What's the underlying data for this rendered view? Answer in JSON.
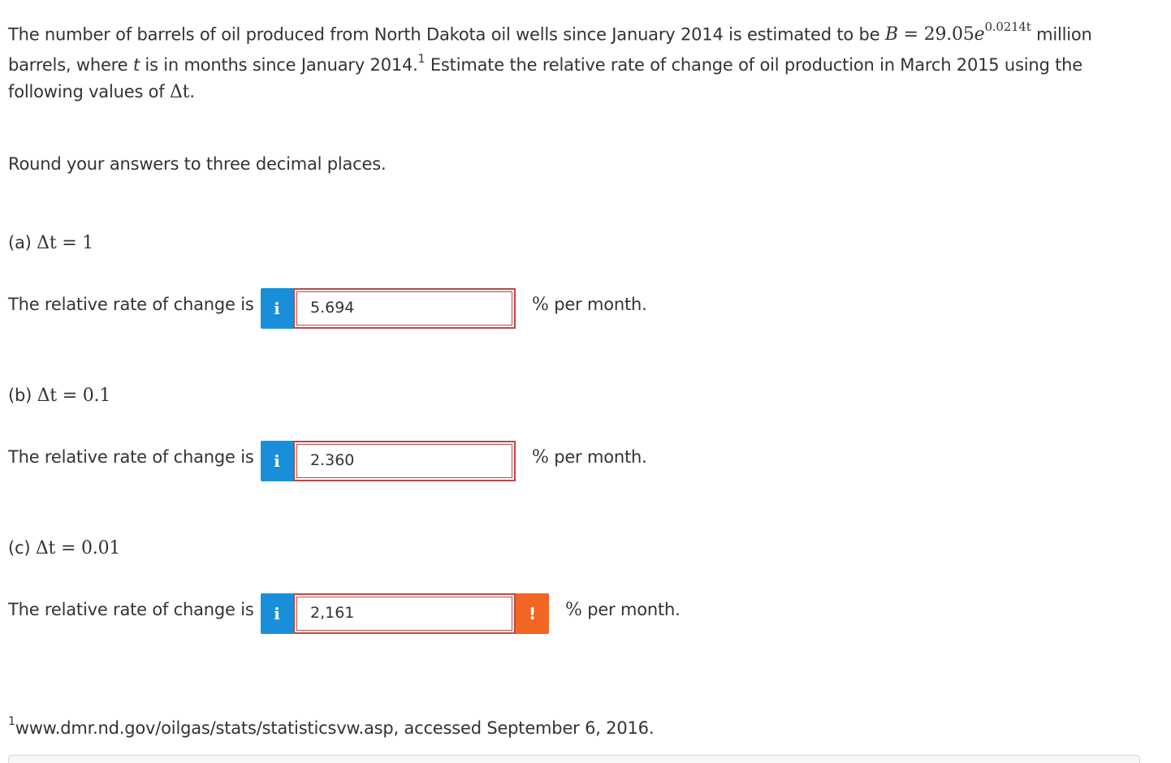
{
  "problem": {
    "intro": "The number of barrels of oil produced from North Dakota oil wells since January 2014 is estimated to be ",
    "formula_lhs": "B",
    "formula_eq": " = 29.05",
    "formula_base": "e",
    "formula_exponent": "0.0214t",
    "after_formula": " million barrels, where ",
    "var_t": "t",
    "after_t": " is in months since January 2014.",
    "footnote_ref": "1",
    "question": " Estimate the relative rate of change of oil production in March 2015 using the following values of ",
    "delta_t": "Δt",
    "period": "."
  },
  "instructions": "Round your answers to three decimal places.",
  "parts": [
    {
      "label": "(a) ",
      "delta": "Δt",
      "delta_value": " = 1",
      "prompt": "The relative rate of change is",
      "info_icon": "i",
      "answer": "5.694",
      "unit_symbol": "%",
      "unit_text": " per month."
    },
    {
      "label": "(b) ",
      "delta": "Δt",
      "delta_value": " = 0.1",
      "prompt": "The relative rate of change is",
      "info_icon": "i",
      "answer": "2.360",
      "unit_symbol": "%",
      "unit_text": " per month."
    },
    {
      "label": "(c) ",
      "delta": "Δt",
      "delta_value": " = 0.01",
      "prompt": "The relative rate of change is",
      "info_icon": "i",
      "answer": "2,161",
      "warning_icon": "!",
      "unit_symbol": "%",
      "unit_text": " per month."
    }
  ],
  "footnote": {
    "number": "1",
    "text": "www.dmr.nd.gov/oilgas/stats/statisticsvw.asp, accessed September 6, 2016."
  },
  "colors": {
    "info_button": "#1a8fd9",
    "warning_button": "#f26522",
    "answer_border": "#b94a48",
    "text": "#333333"
  }
}
